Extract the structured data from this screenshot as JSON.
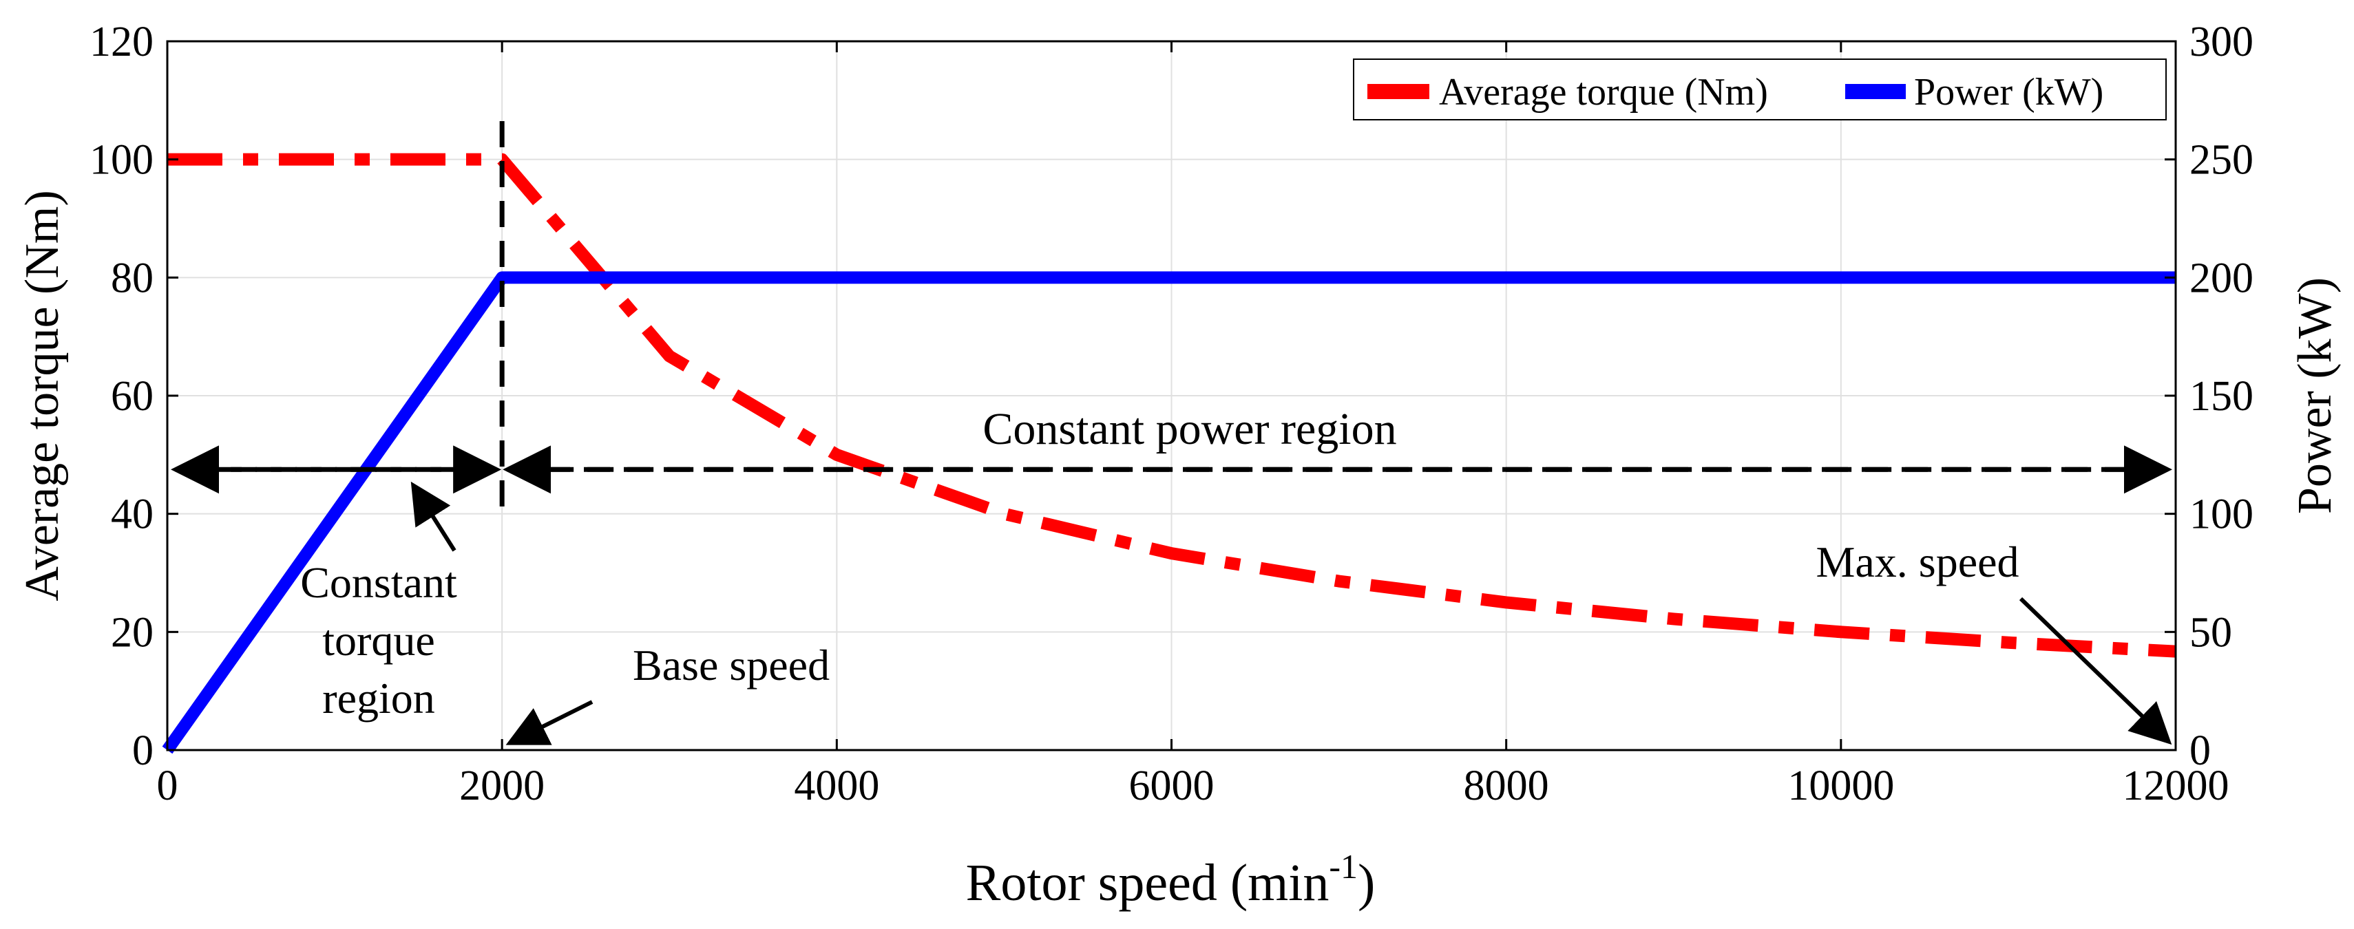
{
  "chart_data": {
    "type": "line",
    "xlabel": "Rotor speed (min",
    "xlabel_superscript": "-1",
    "xlabel_suffix": ")",
    "ylabel_left": "Average torque (Nm)",
    "ylabel_right": "Power (kW)",
    "xlim": [
      0,
      12000
    ],
    "ylim_left": [
      0,
      120
    ],
    "ylim_right": [
      0,
      300
    ],
    "x_ticks": [
      0,
      2000,
      4000,
      6000,
      8000,
      10000,
      12000
    ],
    "x_tick_labels": [
      "0",
      "2000",
      "4000",
      "6000",
      "8000",
      "10000",
      "12000"
    ],
    "y_left_ticks": [
      0,
      20,
      40,
      60,
      80,
      100,
      120
    ],
    "y_left_tick_labels": [
      "0",
      "20",
      "40",
      "60",
      "80",
      "100",
      "120"
    ],
    "y_right_ticks": [
      0,
      50,
      100,
      150,
      200,
      250,
      300
    ],
    "y_right_tick_labels": [
      "0",
      "50",
      "100",
      "150",
      "200",
      "250",
      "300"
    ],
    "grid": true,
    "legend_position": "top-right",
    "series": [
      {
        "name": "Average torque (Nm)",
        "axis": "left",
        "color": "#ff0000",
        "style": "dash-dot",
        "x": [
          0,
          2000,
          3000,
          4000,
          5000,
          6000,
          7000,
          8000,
          9000,
          10000,
          11000,
          12000
        ],
        "y": [
          100,
          100,
          66.7,
          50,
          40,
          33.3,
          28.6,
          25,
          22.2,
          20,
          18.2,
          16.7
        ]
      },
      {
        "name": "Power (kW)",
        "axis": "right",
        "color": "#0000ff",
        "style": "solid",
        "x": [
          0,
          2000,
          12000
        ],
        "y": [
          0,
          200,
          200
        ]
      }
    ],
    "annotations": {
      "base_speed_line_x": 2000,
      "region_arrow_y_left": 47.5,
      "constant_power_label": "Constant power region",
      "constant_torque_label": [
        "Constant",
        "torque",
        "region"
      ],
      "base_speed_label": "Base speed",
      "max_speed_label": "Max. speed"
    }
  },
  "colors": {
    "torque": "#ff0000",
    "power": "#0000ff",
    "grid": "#e0e0e0",
    "axis": "#000000"
  }
}
